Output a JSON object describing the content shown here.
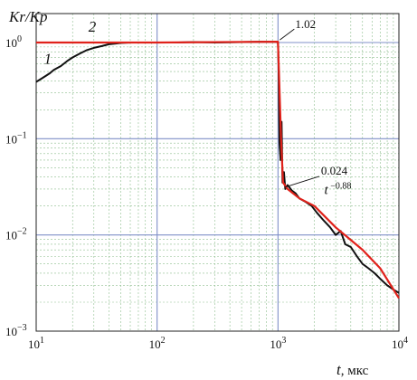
{
  "chart_data": {
    "type": "line",
    "title": "",
    "ylabel": "Kr/Kp",
    "xlabel_var": "t",
    "xlabel_unit": ", мкс",
    "x_scale": "log",
    "y_scale": "log",
    "xlim": [
      10,
      10000
    ],
    "ylim": [
      0.001,
      2
    ],
    "x_ticks": [
      {
        "value": 10,
        "base": "10",
        "exp": "1"
      },
      {
        "value": 100,
        "base": "10",
        "exp": "2"
      },
      {
        "value": 1000,
        "base": "10",
        "exp": "3"
      },
      {
        "value": 10000,
        "base": "10",
        "exp": "4"
      }
    ],
    "y_ticks": [
      {
        "value": 1,
        "base": "10",
        "exp": "0"
      },
      {
        "value": 0.1,
        "base": "10",
        "exp": "−1"
      },
      {
        "value": 0.01,
        "base": "10",
        "exp": "−2"
      },
      {
        "value": 0.001,
        "base": "10",
        "exp": "−3"
      }
    ],
    "grid": true,
    "series": [
      {
        "name": "1",
        "color": "#111111",
        "points": [
          [
            10,
            0.39
          ],
          [
            11,
            0.42
          ],
          [
            12,
            0.45
          ],
          [
            13,
            0.48
          ],
          [
            14,
            0.52
          ],
          [
            16,
            0.57
          ],
          [
            18,
            0.64
          ],
          [
            20,
            0.7
          ],
          [
            23,
            0.77
          ],
          [
            26,
            0.83
          ],
          [
            30,
            0.88
          ],
          [
            35,
            0.92
          ],
          [
            40,
            0.96
          ],
          [
            50,
            0.99
          ],
          [
            60,
            1.0
          ],
          [
            80,
            1.0
          ],
          [
            100,
            1.0
          ],
          [
            150,
            1.0
          ],
          [
            200,
            1.01
          ],
          [
            300,
            1.0
          ],
          [
            500,
            1.01
          ],
          [
            700,
            1.02
          ],
          [
            950,
            1.02
          ],
          [
            1000,
            1.0
          ],
          [
            1010,
            0.6
          ],
          [
            1030,
            0.09
          ],
          [
            1050,
            0.06
          ],
          [
            1070,
            0.15
          ],
          [
            1090,
            0.035
          ],
          [
            1120,
            0.045
          ],
          [
            1150,
            0.03
          ],
          [
            1200,
            0.033
          ],
          [
            1300,
            0.029
          ],
          [
            1400,
            0.027
          ],
          [
            1500,
            0.024
          ],
          [
            1700,
            0.022
          ],
          [
            1900,
            0.02
          ],
          [
            2100,
            0.017
          ],
          [
            2400,
            0.014
          ],
          [
            2700,
            0.012
          ],
          [
            3000,
            0.01
          ],
          [
            3300,
            0.011
          ],
          [
            3600,
            0.008
          ],
          [
            4000,
            0.0075
          ],
          [
            4500,
            0.006
          ],
          [
            5000,
            0.005
          ],
          [
            5600,
            0.0045
          ],
          [
            6300,
            0.004
          ],
          [
            7000,
            0.0035
          ],
          [
            8000,
            0.003
          ],
          [
            9000,
            0.0027
          ],
          [
            10000,
            0.0025
          ]
        ]
      },
      {
        "name": "2",
        "color": "#e0221b",
        "points": [
          [
            10,
            1.0
          ],
          [
            100,
            1.0
          ],
          [
            1000,
            1.02
          ],
          [
            1060,
            0.1
          ],
          [
            1100,
            0.035
          ],
          [
            1200,
            0.03
          ],
          [
            1500,
            0.024
          ],
          [
            2000,
            0.02
          ],
          [
            3000,
            0.012
          ],
          [
            5000,
            0.007
          ],
          [
            7000,
            0.0045
          ],
          [
            10000,
            0.0022
          ]
        ]
      }
    ],
    "annotations": [
      {
        "text": "1.02",
        "x": 1000,
        "y": 1.02
      },
      {
        "text": "0.024",
        "x": 1100,
        "y": 0.03
      },
      {
        "text_base": "t",
        "text_exp": " −0.88",
        "x": 2500,
        "y": 0.018
      }
    ]
  }
}
